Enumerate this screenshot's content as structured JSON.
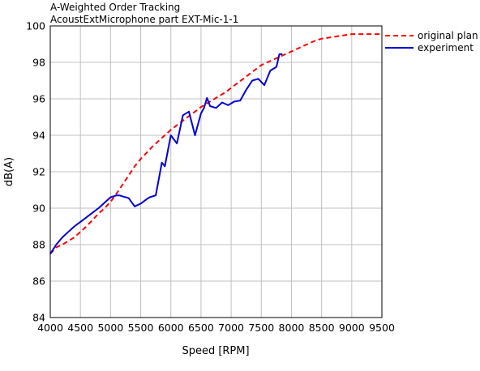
{
  "chart_data": {
    "type": "line",
    "title": "A-Weighted Order Tracking",
    "subtitle": "AcoustExtMicrophone part EXT-Mic-1-1",
    "xlabel": "Speed [RPM]",
    "ylabel": "dB(A)",
    "xlim": [
      4000,
      9500
    ],
    "ylim": [
      84,
      100
    ],
    "xticks": [
      4000,
      4500,
      5000,
      5500,
      6000,
      6500,
      7000,
      7500,
      8000,
      8500,
      9000,
      9500
    ],
    "yticks": [
      84,
      86,
      88,
      90,
      92,
      94,
      96,
      98,
      100
    ],
    "grid": true,
    "legend_position": "top-right, outside plot",
    "series": [
      {
        "name": "original plan",
        "color": "#ff0000",
        "style": "dashed",
        "x": [
          4000,
          4100,
          4200,
          4300,
          4400,
          4500,
          4600,
          4700,
          4800,
          4900,
          5000,
          5100,
          5200,
          5300,
          5400,
          5500,
          5600,
          5700,
          5800,
          5900,
          6000,
          6100,
          6200,
          6300,
          6400,
          6500,
          6600,
          6700,
          6800,
          6900,
          7000,
          7100,
          7200,
          7300,
          7400,
          7500,
          7600,
          7700,
          7800,
          7900,
          8000,
          8200,
          8400,
          8500,
          8700,
          9000,
          9300,
          9500
        ],
        "y": [
          87.5,
          87.85,
          88.0,
          88.2,
          88.4,
          88.7,
          89.0,
          89.35,
          89.7,
          90.0,
          90.35,
          90.8,
          91.3,
          91.8,
          92.3,
          92.7,
          93.05,
          93.4,
          93.7,
          94.0,
          94.3,
          94.55,
          94.8,
          95.05,
          95.3,
          95.55,
          95.75,
          95.95,
          96.15,
          96.35,
          96.6,
          96.85,
          97.1,
          97.35,
          97.6,
          97.85,
          98.0,
          98.15,
          98.3,
          98.45,
          98.6,
          98.9,
          99.2,
          99.3,
          99.4,
          99.55,
          99.55,
          99.55
        ]
      },
      {
        "name": "experiment",
        "color": "#0000dd",
        "style": "solid",
        "x": [
          4000,
          4100,
          4200,
          4300,
          4400,
          4500,
          4600,
          4700,
          4800,
          4900,
          5000,
          5100,
          5150,
          5200,
          5300,
          5400,
          5500,
          5600,
          5650,
          5750,
          5850,
          5900,
          6000,
          6100,
          6200,
          6300,
          6400,
          6500,
          6550,
          6600,
          6650,
          6750,
          6850,
          6950,
          7050,
          7150,
          7250,
          7350,
          7450,
          7550,
          7650,
          7750,
          7800,
          7850
        ],
        "y": [
          87.5,
          88.0,
          88.4,
          88.7,
          89.0,
          89.25,
          89.5,
          89.75,
          90.0,
          90.3,
          90.6,
          90.7,
          90.7,
          90.65,
          90.55,
          90.1,
          90.25,
          90.5,
          90.6,
          90.7,
          92.5,
          92.3,
          94.0,
          93.55,
          95.1,
          95.3,
          94.0,
          95.2,
          95.5,
          96.05,
          95.6,
          95.5,
          95.8,
          95.65,
          95.85,
          95.9,
          96.5,
          97.0,
          97.1,
          96.75,
          97.55,
          97.75,
          98.45,
          98.45
        ]
      }
    ]
  }
}
